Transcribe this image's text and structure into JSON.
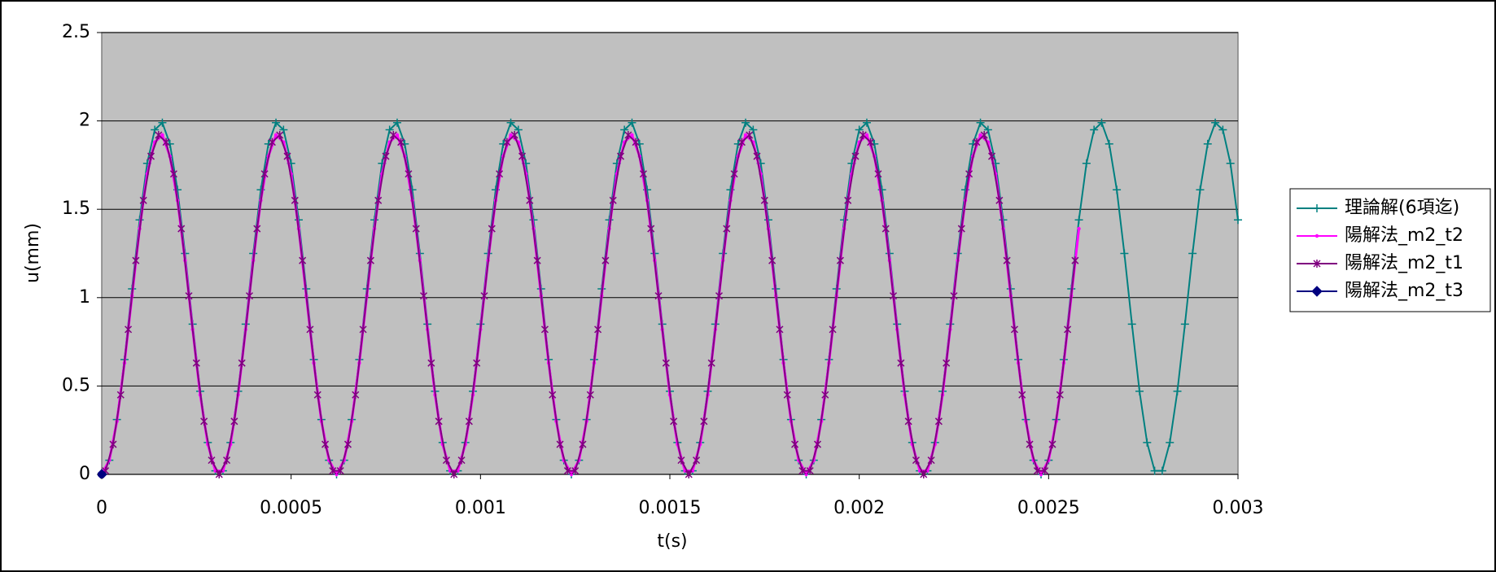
{
  "chart_data": {
    "type": "line",
    "x_label": "t(s)",
    "y_label": "u(mm)",
    "xlim": [
      0,
      0.003
    ],
    "xticks": [
      0,
      0.0005,
      0.001,
      0.0015,
      0.002,
      0.0025,
      0.003
    ],
    "ylim": [
      0,
      2.5
    ],
    "yticks": [
      0,
      0.5,
      1,
      1.5,
      2,
      2.5
    ],
    "grid": true,
    "legend": "right",
    "plot_background": "#c0c0c0",
    "series": [
      {
        "name": "理論解(6項迄)",
        "color": "#008080",
        "marker": "plus",
        "x": [
          0,
          2e-05,
          4e-05,
          6e-05,
          8e-05,
          0.0001,
          0.00012,
          0.00014,
          0.00016,
          0.00018,
          0.0002,
          0.00022,
          0.00024,
          0.00026,
          0.00028,
          0.0003,
          0.00032,
          0.00034,
          0.00036,
          0.00038,
          0.0004,
          0.00042,
          0.00044,
          0.00046,
          0.00048,
          0.0005,
          0.00052,
          0.00054,
          0.00056,
          0.00058,
          0.0006,
          0.00062,
          0.00064,
          0.00066,
          0.00068,
          0.0007,
          0.00072,
          0.00074,
          0.00076,
          0.00078,
          0.0008,
          0.00082,
          0.00084,
          0.00086,
          0.00088,
          0.0009,
          0.00092,
          0.00094,
          0.00096,
          0.00098,
          0.001,
          0.00102,
          0.00104,
          0.00106,
          0.00108,
          0.0011,
          0.00112,
          0.00114,
          0.00116,
          0.00118,
          0.0012,
          0.00122,
          0.00124,
          0.00126,
          0.00128,
          0.0013,
          0.00132,
          0.00134,
          0.00136,
          0.00138,
          0.0014,
          0.00142,
          0.00144,
          0.00146,
          0.00148,
          0.0015,
          0.00152,
          0.00154,
          0.00156,
          0.00158,
          0.0016,
          0.00162,
          0.00164,
          0.00166,
          0.00168,
          0.0017,
          0.00172,
          0.00174,
          0.00176,
          0.00178,
          0.0018,
          0.00182,
          0.00184,
          0.00186,
          0.00188,
          0.0019,
          0.00192,
          0.00194,
          0.00196,
          0.00198,
          0.002,
          0.00202,
          0.00204,
          0.00206,
          0.00208,
          0.0021,
          0.00212,
          0.00214,
          0.00216,
          0.00218,
          0.0022,
          0.00222,
          0.00224,
          0.00226,
          0.00228,
          0.0023,
          0.00232,
          0.00234,
          0.00236,
          0.00238,
          0.0024,
          0.00242,
          0.00244,
          0.00246,
          0.00248,
          0.0025,
          0.00252,
          0.00254,
          0.00256,
          0.00258,
          0.0026,
          0.00262,
          0.00264,
          0.00266,
          0.00268,
          0.0027,
          0.00272,
          0.00274,
          0.00276,
          0.00278,
          0.0028,
          0.00282,
          0.00284,
          0.00286,
          0.00288,
          0.0029,
          0.00292,
          0.00294,
          0.00296,
          0.00298,
          0.003
        ],
        "values": [
          0,
          0.08,
          0.31,
          0.65,
          1.05,
          1.44,
          1.76,
          1.95,
          1.99,
          1.87,
          1.61,
          1.25,
          0.85,
          0.47,
          0.18,
          0.02,
          0.02,
          0.18,
          0.47,
          0.85,
          1.25,
          1.61,
          1.87,
          1.99,
          1.95,
          1.76,
          1.44,
          1.05,
          0.65,
          0.31,
          0.08,
          0,
          0.08,
          0.31,
          0.65,
          1.05,
          1.44,
          1.76,
          1.95,
          1.99,
          1.87,
          1.61,
          1.25,
          0.85,
          0.47,
          0.18,
          0.02,
          0.02,
          0.18,
          0.47,
          0.85,
          1.25,
          1.61,
          1.87,
          1.99,
          1.95,
          1.76,
          1.44,
          1.05,
          0.65,
          0.31,
          0.08,
          0,
          0.08,
          0.31,
          0.65,
          1.05,
          1.44,
          1.76,
          1.95,
          1.99,
          1.87,
          1.61,
          1.25,
          0.85,
          0.47,
          0.18,
          0.02,
          0.02,
          0.18,
          0.47,
          0.85,
          1.25,
          1.61,
          1.87,
          1.99,
          1.95,
          1.76,
          1.44,
          1.05,
          0.65,
          0.31,
          0.08,
          0,
          0.08,
          0.31,
          0.65,
          1.05,
          1.44,
          1.76,
          1.95,
          1.99,
          1.87,
          1.61,
          1.25,
          0.85,
          0.47,
          0.18,
          0.02,
          0.02,
          0.18,
          0.47,
          0.85,
          1.25,
          1.61,
          1.87,
          1.99,
          1.95,
          1.76,
          1.44,
          1.05,
          0.65,
          0.31,
          0.08,
          0,
          0.08,
          0.31,
          0.65,
          1.05,
          1.44,
          1.76,
          1.95,
          1.99,
          1.87,
          1.61,
          1.25,
          0.85,
          0.47,
          0.18,
          0.02,
          0.02,
          0.18,
          0.47,
          0.85,
          1.25,
          1.61,
          1.87,
          1.99,
          1.95,
          1.76,
          1.44
        ]
      },
      {
        "name": "陽解法_m2_t2",
        "color": "#ff00ff",
        "marker": "dot",
        "x": [
          0,
          2e-05,
          4e-05,
          6e-05,
          8e-05,
          0.0001,
          0.00012,
          0.00014,
          0.00016,
          0.00018,
          0.0002,
          0.00022,
          0.00024,
          0.00026,
          0.00028,
          0.0003,
          0.00032,
          0.00034,
          0.00036,
          0.00038,
          0.0004,
          0.00042,
          0.00044,
          0.00046,
          0.00048,
          0.0005,
          0.00052,
          0.00054,
          0.00056,
          0.00058,
          0.0006,
          0.00062,
          0.00064,
          0.00066,
          0.00068,
          0.0007,
          0.00072,
          0.00074,
          0.00076,
          0.00078,
          0.0008,
          0.00082,
          0.00084,
          0.00086,
          0.00088,
          0.0009,
          0.00092,
          0.00094,
          0.00096,
          0.00098,
          0.001,
          0.00102,
          0.00104,
          0.00106,
          0.00108,
          0.0011,
          0.00112,
          0.00114,
          0.00116,
          0.00118,
          0.0012,
          0.00122,
          0.00124,
          0.00126,
          0.00128,
          0.0013,
          0.00132,
          0.00134,
          0.00136,
          0.00138,
          0.0014,
          0.00142,
          0.00144,
          0.00146,
          0.00148,
          0.0015,
          0.00152,
          0.00154,
          0.00156,
          0.00158,
          0.0016,
          0.00162,
          0.00164,
          0.00166,
          0.00168,
          0.0017,
          0.00172,
          0.00174,
          0.00176,
          0.00178,
          0.0018,
          0.00182,
          0.00184,
          0.00186,
          0.00188,
          0.0019,
          0.00192,
          0.00194,
          0.00196,
          0.00198,
          0.002,
          0.00202,
          0.00204,
          0.00206,
          0.00208,
          0.0021,
          0.00212,
          0.00214,
          0.00216,
          0.00218,
          0.0022,
          0.00222,
          0.00224,
          0.00226,
          0.00228,
          0.0023,
          0.00232,
          0.00234,
          0.00236,
          0.00238,
          0.0024,
          0.00242,
          0.00244,
          0.00246,
          0.00248,
          0.0025,
          0.00252,
          0.00254,
          0.00256,
          0.00258
        ],
        "values": [
          0,
          0.08,
          0.3,
          0.63,
          1.01,
          1.39,
          1.7,
          1.88,
          1.92,
          1.8,
          1.55,
          1.21,
          0.82,
          0.45,
          0.17,
          0.02,
          0.02,
          0.17,
          0.45,
          0.82,
          1.21,
          1.55,
          1.8,
          1.92,
          1.88,
          1.7,
          1.39,
          1.01,
          0.63,
          0.3,
          0.08,
          0,
          0.08,
          0.3,
          0.63,
          1.01,
          1.39,
          1.7,
          1.88,
          1.92,
          1.8,
          1.55,
          1.21,
          0.82,
          0.45,
          0.17,
          0.02,
          0.02,
          0.17,
          0.45,
          0.82,
          1.21,
          1.55,
          1.8,
          1.92,
          1.88,
          1.7,
          1.39,
          1.01,
          0.63,
          0.3,
          0.08,
          0,
          0.08,
          0.3,
          0.63,
          1.01,
          1.39,
          1.7,
          1.88,
          1.92,
          1.8,
          1.55,
          1.21,
          0.82,
          0.45,
          0.17,
          0.02,
          0.02,
          0.17,
          0.45,
          0.82,
          1.21,
          1.55,
          1.8,
          1.92,
          1.88,
          1.7,
          1.39,
          1.01,
          0.63,
          0.3,
          0.08,
          0,
          0.08,
          0.3,
          0.63,
          1.01,
          1.39,
          1.7,
          1.88,
          1.92,
          1.8,
          1.55,
          1.21,
          0.82,
          0.45,
          0.17,
          0.02,
          0.02,
          0.17,
          0.45,
          0.82,
          1.21,
          1.55,
          1.8,
          1.92,
          1.88,
          1.7,
          1.39,
          1.01,
          0.63,
          0.3,
          0.08,
          0,
          0.08,
          0.3,
          0.63,
          1.01,
          1.39
        ]
      },
      {
        "name": "陽解法_m2_t1",
        "color": "#800080",
        "marker": "star",
        "x": [
          1e-05,
          3e-05,
          5e-05,
          7e-05,
          9e-05,
          0.00011,
          0.00013,
          0.00015,
          0.00017,
          0.00019,
          0.00021,
          0.00023,
          0.00025,
          0.00027,
          0.00029,
          0.00031,
          0.00033,
          0.00035,
          0.00037,
          0.00039,
          0.00041,
          0.00043,
          0.00045,
          0.00047,
          0.00049,
          0.00051,
          0.00053,
          0.00055,
          0.00057,
          0.00059,
          0.00061,
          0.00063,
          0.00065,
          0.00067,
          0.00069,
          0.00071,
          0.00073,
          0.00075,
          0.00077,
          0.00079,
          0.00081,
          0.00083,
          0.00085,
          0.00087,
          0.00089,
          0.00091,
          0.00093,
          0.00095,
          0.00097,
          0.00099,
          0.00101,
          0.00103,
          0.00105,
          0.00107,
          0.00109,
          0.00111,
          0.00113,
          0.00115,
          0.00117,
          0.00119,
          0.00121,
          0.00123,
          0.00125,
          0.00127,
          0.00129,
          0.00131,
          0.00133,
          0.00135,
          0.00137,
          0.00139,
          0.00141,
          0.00143,
          0.00145,
          0.00147,
          0.00149,
          0.00151,
          0.00153,
          0.00155,
          0.00157,
          0.00159,
          0.00161,
          0.00163,
          0.00165,
          0.00167,
          0.00169,
          0.00171,
          0.00173,
          0.00175,
          0.00177,
          0.00179,
          0.00181,
          0.00183,
          0.00185,
          0.00187,
          0.00189,
          0.00191,
          0.00193,
          0.00195,
          0.00197,
          0.00199,
          0.00201,
          0.00203,
          0.00205,
          0.00207,
          0.00209,
          0.00211,
          0.00213,
          0.00215,
          0.00217,
          0.00219,
          0.00221,
          0.00223,
          0.00225,
          0.00227,
          0.00229,
          0.00231,
          0.00233,
          0.00235,
          0.00237,
          0.00239,
          0.00241,
          0.00243,
          0.00245,
          0.00247,
          0.00249,
          0.00251,
          0.00253,
          0.00255,
          0.00257
        ],
        "values": [
          0.02,
          0.17,
          0.45,
          0.82,
          1.21,
          1.55,
          1.8,
          1.92,
          1.88,
          1.7,
          1.39,
          1.01,
          0.63,
          0.3,
          0.08,
          0,
          0.08,
          0.3,
          0.63,
          1.01,
          1.39,
          1.7,
          1.88,
          1.92,
          1.8,
          1.55,
          1.21,
          0.82,
          0.45,
          0.17,
          0.02,
          0.02,
          0.17,
          0.45,
          0.82,
          1.21,
          1.55,
          1.8,
          1.92,
          1.88,
          1.7,
          1.39,
          1.01,
          0.63,
          0.3,
          0.08,
          0,
          0.08,
          0.3,
          0.63,
          1.01,
          1.39,
          1.7,
          1.88,
          1.92,
          1.8,
          1.55,
          1.21,
          0.82,
          0.45,
          0.17,
          0.02,
          0.02,
          0.17,
          0.45,
          0.82,
          1.21,
          1.55,
          1.8,
          1.92,
          1.88,
          1.7,
          1.39,
          1.01,
          0.63,
          0.3,
          0.08,
          0,
          0.08,
          0.3,
          0.63,
          1.01,
          1.39,
          1.7,
          1.88,
          1.92,
          1.8,
          1.55,
          1.21,
          0.82,
          0.45,
          0.17,
          0.02,
          0.02,
          0.17,
          0.45,
          0.82,
          1.21,
          1.55,
          1.8,
          1.92,
          1.88,
          1.7,
          1.39,
          1.01,
          0.63,
          0.3,
          0.08,
          0,
          0.08,
          0.3,
          0.63,
          1.01,
          1.39,
          1.7,
          1.88,
          1.92,
          1.8,
          1.55,
          1.21,
          0.82,
          0.45,
          0.17,
          0.02,
          0.02,
          0.17,
          0.45,
          0.82,
          1.21
        ]
      },
      {
        "name": "陽解法_m2_t3",
        "color": "#000080",
        "marker": "diamond",
        "x": [
          0
        ],
        "values": [
          0
        ]
      }
    ]
  }
}
